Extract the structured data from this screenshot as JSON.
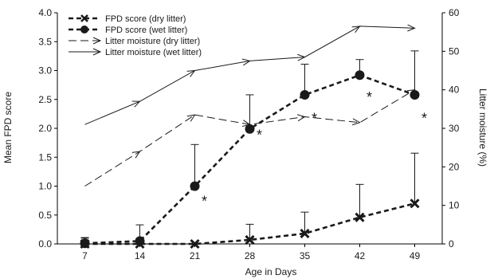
{
  "chart_data": {
    "type": "line",
    "x": [
      7,
      14,
      21,
      28,
      35,
      42,
      49
    ],
    "xlabel": "Age in Days",
    "ylabel": "Mean FPD score",
    "y2label": "Litter moisture (%)",
    "ylim": [
      0,
      4.0
    ],
    "y2lim": [
      0,
      60
    ],
    "xticks": [
      "7",
      "14",
      "21",
      "28",
      "35",
      "42",
      "49"
    ],
    "yticks": [
      "0.0",
      "0.5",
      "1.0",
      "1.5",
      "2.0",
      "2.5",
      "3.0",
      "3.5",
      "4.0"
    ],
    "y2ticks": [
      "0",
      "10",
      "20",
      "30",
      "40",
      "50",
      "60"
    ],
    "legend_position": "top-left",
    "grid": false,
    "series": [
      {
        "name": "FPD score (dry litter)",
        "axis": "left",
        "style": "dashed-thick",
        "marker": "x",
        "values": [
          0.0,
          0.0,
          0.0,
          0.07,
          0.18,
          0.46,
          0.7
        ],
        "error_upper": [
          0.1,
          0.0,
          0.0,
          0.34,
          0.55,
          1.03,
          1.57
        ]
      },
      {
        "name": "FPD score (wet litter)",
        "axis": "left",
        "style": "dashed-thick",
        "marker": "circle",
        "values": [
          0.01,
          0.05,
          1.0,
          1.99,
          2.58,
          2.92,
          2.58
        ],
        "error_upper": [
          0.11,
          0.33,
          1.72,
          2.58,
          3.11,
          3.19,
          3.34
        ]
      },
      {
        "name": "Litter moisture (dry litter)",
        "axis": "right",
        "style": "dashed-thin",
        "marker": "arrow",
        "values": [
          15.0,
          24.0,
          33.5,
          31.0,
          33.0,
          31.5,
          40.0
        ]
      },
      {
        "name": "Litter moisture (wet litter)",
        "axis": "right",
        "style": "solid-thin",
        "marker": "arrow",
        "values": [
          31.0,
          37.0,
          45.0,
          47.5,
          48.5,
          56.5,
          56.0
        ]
      }
    ],
    "annotations": [
      {
        "text": "*",
        "x": 21,
        "y": 0.85
      },
      {
        "text": "*",
        "x": 28,
        "y": 1.99
      },
      {
        "text": "*",
        "x": 35,
        "y": 2.28
      },
      {
        "text": "*",
        "x": 42,
        "y": 2.65
      },
      {
        "text": "*",
        "x": 49,
        "y": 2.28
      }
    ],
    "colors": {
      "series": "#1a1a1a",
      "axis": "#000000"
    }
  }
}
